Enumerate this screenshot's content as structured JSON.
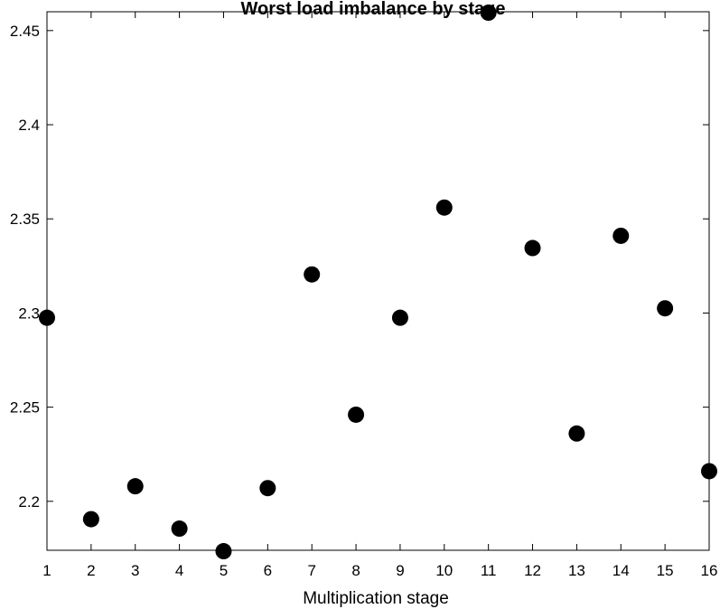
{
  "chart_data": {
    "type": "scatter",
    "title": "Worst load imbalance by stage",
    "xlabel": "Multiplication stage",
    "ylabel": "",
    "xlim": [
      1,
      16
    ],
    "ylim": [
      2.174,
      2.46
    ],
    "xticks": [
      1,
      2,
      3,
      4,
      5,
      6,
      7,
      8,
      9,
      10,
      11,
      12,
      13,
      14,
      15,
      16
    ],
    "yticks": [
      2.2,
      2.25,
      2.3,
      2.35,
      2.4,
      2.45
    ],
    "ytick_labels": [
      "2.2",
      "2.25",
      "2.3",
      "2.35",
      "2.4",
      "2.45"
    ],
    "grid": false,
    "marker_color": "#000000",
    "x": [
      1,
      2,
      3,
      4,
      5,
      6,
      7,
      8,
      9,
      10,
      11,
      12,
      13,
      14,
      15,
      16
    ],
    "y": [
      2.2975,
      2.1905,
      2.208,
      2.1855,
      2.1735,
      2.207,
      2.3205,
      2.246,
      2.2975,
      2.356,
      2.4595,
      2.3345,
      2.236,
      2.341,
      2.3025,
      2.216
    ]
  }
}
